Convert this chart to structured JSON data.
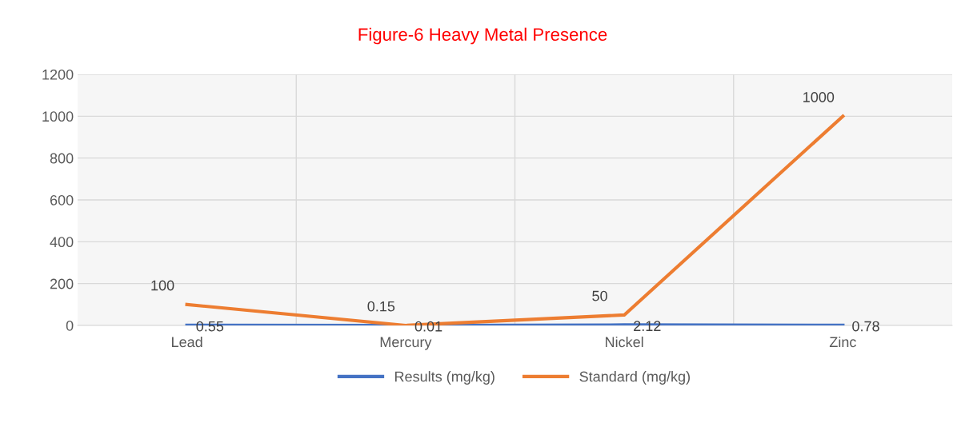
{
  "chart_data": {
    "type": "line",
    "title": "Figure-6 Heavy Metal Presence",
    "categories": [
      "Lead",
      "Mercury",
      "Nickel",
      "Zinc"
    ],
    "series": [
      {
        "name": "Results (mg/kg)",
        "color": "#4472c4",
        "values": [
          0.55,
          0.01,
          2.12,
          0.78
        ]
      },
      {
        "name": "Standard (mg/kg)",
        "color": "#ed7d31",
        "values": [
          100,
          0.15,
          50,
          1000
        ]
      }
    ],
    "ylim": [
      0,
      1200
    ],
    "yticks": [
      0,
      200,
      400,
      600,
      800,
      1000,
      1200
    ],
    "grid": true,
    "legend": "bottom",
    "data_labels": true,
    "marker": "none",
    "line_style": "solid"
  }
}
